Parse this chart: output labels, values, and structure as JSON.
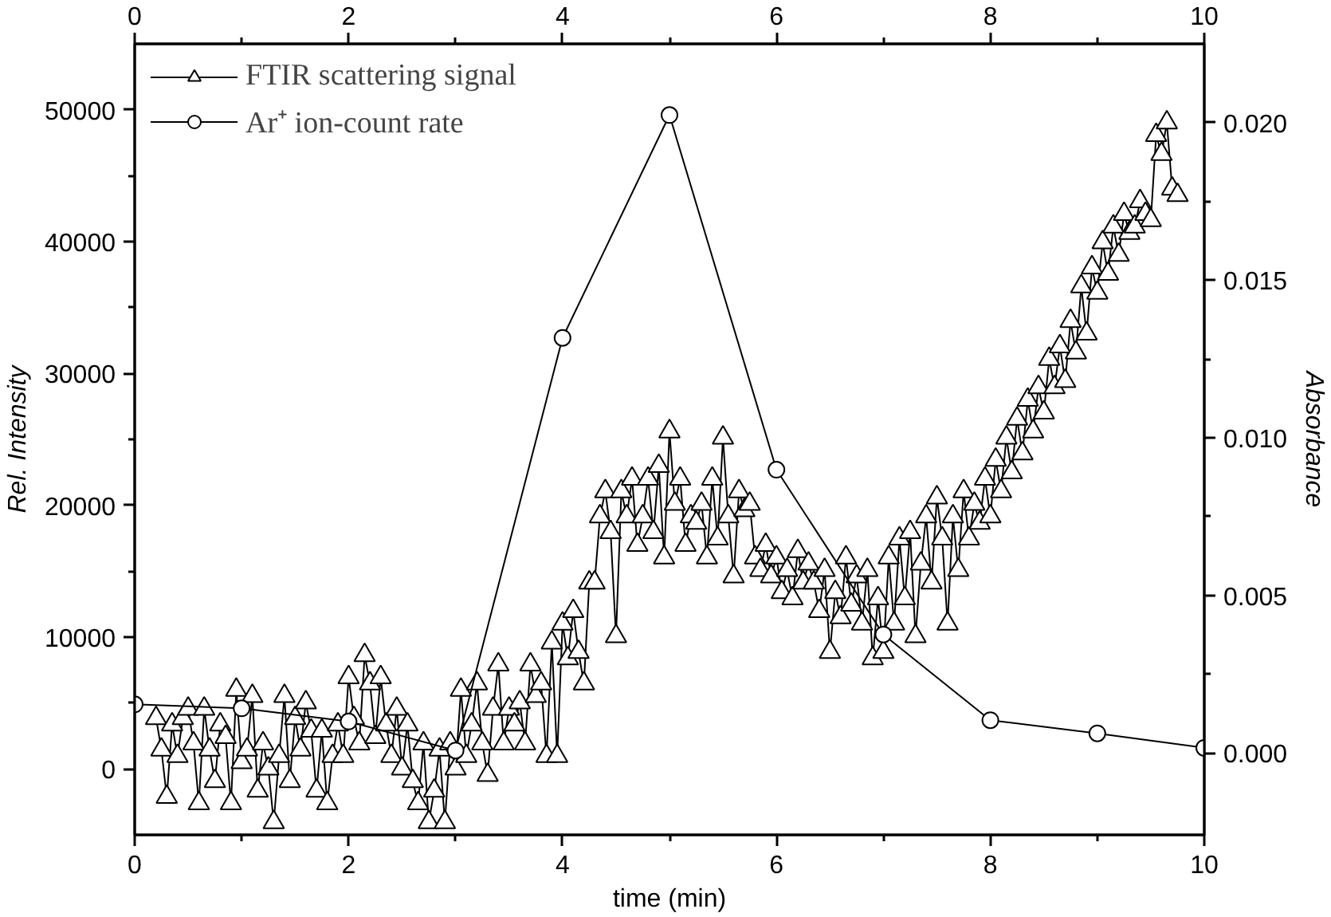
{
  "chart_data": {
    "type": "line",
    "xlabel": "time (min)",
    "ylabel": "Rel. Intensity",
    "y2label": "Absorbance",
    "xlim": [
      0,
      10
    ],
    "xticks": [
      0,
      {
        "value": 1,
        "label": null
      },
      2,
      {
        "value": 3,
        "label": null
      },
      4,
      {
        "value": 5,
        "label": null
      },
      6,
      {
        "value": 7,
        "label": null
      },
      8,
      {
        "value": 9,
        "label": null
      },
      10
    ],
    "x2lim": [
      0,
      10
    ],
    "x2ticks": [
      0,
      {
        "value": 1,
        "label": null
      },
      2,
      {
        "value": 3,
        "label": null
      },
      4,
      {
        "value": 5,
        "label": null
      },
      6,
      {
        "value": 7,
        "label": null
      },
      8,
      {
        "value": 9,
        "label": null
      },
      10
    ],
    "ylim": [
      -5000,
      55000
    ],
    "yticks": [
      0,
      {
        "value": 5000,
        "label": null
      },
      10000,
      {
        "value": 15000,
        "label": null
      },
      20000,
      {
        "value": 25000,
        "label": null
      },
      30000,
      {
        "value": 35000,
        "label": null
      },
      40000,
      {
        "value": 45000,
        "label": null
      },
      50000
    ],
    "y2lim": [
      -0.0026,
      0.0225
    ],
    "y2ticks": [
      {
        "value": 0,
        "label": "0.000"
      },
      {
        "value": 0.0025,
        "label": null
      },
      {
        "value": 0.005,
        "label": "0.005"
      },
      {
        "value": 0.0075,
        "label": null
      },
      {
        "value": 0.01,
        "label": "0.010"
      },
      {
        "value": 0.0125,
        "label": null
      },
      {
        "value": 0.015,
        "label": "0.015"
      },
      {
        "value": 0.0175,
        "label": null
      },
      {
        "value": 0.02,
        "label": "0.020"
      }
    ],
    "grid": false,
    "legend": "top left",
    "line_style": "solid",
    "series": [
      {
        "name": "FTIR scattering signal",
        "color": "#000000",
        "marker": "triangle",
        "axis": "y2",
        "x": [
          0.2,
          0.25,
          0.3,
          0.35,
          0.4,
          0.45,
          0.5,
          0.55,
          0.6,
          0.65,
          0.7,
          0.75,
          0.8,
          0.85,
          0.9,
          0.95,
          1.0,
          1.05,
          1.1,
          1.15,
          1.2,
          1.25,
          1.3,
          1.35,
          1.4,
          1.45,
          1.5,
          1.55,
          1.6,
          1.65,
          1.7,
          1.75,
          1.8,
          1.85,
          1.9,
          1.95,
          2.0,
          2.05,
          2.1,
          2.15,
          2.2,
          2.25,
          2.3,
          2.35,
          2.4,
          2.45,
          2.5,
          2.55,
          2.6,
          2.65,
          2.7,
          2.75,
          2.8,
          2.85,
          2.9,
          2.95,
          3.0,
          3.05,
          3.1,
          3.15,
          3.2,
          3.25,
          3.3,
          3.35,
          3.4,
          3.45,
          3.5,
          3.55,
          3.6,
          3.65,
          3.7,
          3.75,
          3.8,
          3.85,
          3.9,
          3.95,
          4.0,
          4.05,
          4.1,
          4.15,
          4.2,
          4.25,
          4.3,
          4.35,
          4.4,
          4.45,
          4.5,
          4.55,
          4.6,
          4.65,
          4.7,
          4.75,
          4.8,
          4.85,
          4.9,
          4.95,
          5.0,
          5.05,
          5.1,
          5.15,
          5.2,
          5.25,
          5.3,
          5.35,
          5.4,
          5.45,
          5.5,
          5.55,
          5.6,
          5.65,
          5.7,
          5.75,
          5.8,
          5.85,
          5.9,
          5.95,
          6.0,
          6.05,
          6.1,
          6.15,
          6.2,
          6.25,
          6.3,
          6.35,
          6.4,
          6.45,
          6.5,
          6.55,
          6.6,
          6.65,
          6.7,
          6.75,
          6.8,
          6.85,
          6.9,
          6.95,
          7.0,
          7.05,
          7.1,
          7.15,
          7.2,
          7.25,
          7.3,
          7.35,
          7.4,
          7.45,
          7.5,
          7.55,
          7.6,
          7.65,
          7.7,
          7.75,
          7.8,
          7.85,
          7.9,
          7.95,
          8.0,
          8.05,
          8.1,
          8.15,
          8.2,
          8.25,
          8.3,
          8.35,
          8.4,
          8.45,
          8.5,
          8.55,
          8.6,
          8.65,
          8.7,
          8.75,
          8.8,
          8.85,
          8.9,
          8.95,
          9.0,
          9.05,
          9.1,
          9.15,
          9.2,
          9.25,
          9.3,
          9.35,
          9.4,
          9.45,
          9.5,
          9.55,
          9.6,
          9.65,
          9.7,
          9.75
        ],
        "values": [
          0.0011,
          0.0001,
          -0.0014,
          0.0009,
          -0.0001,
          0.0011,
          0.0014,
          0.0003,
          -0.0016,
          0.0014,
          0.0001,
          -0.0009,
          0.0009,
          0.0005,
          -0.0016,
          0.002,
          -0.0003,
          0.0001,
          0.0018,
          -0.0012,
          0.0003,
          -0.0005,
          -0.0022,
          -0.0001,
          0.0018,
          -0.0009,
          0.0011,
          0.0001,
          0.0016,
          0.0007,
          -0.0012,
          0.0007,
          -0.0016,
          -0.0001,
          0.0009,
          -0.0001,
          0.0024,
          0.0011,
          0.0003,
          0.0031,
          0.0022,
          0.0005,
          0.0024,
          0.0009,
          -0.0001,
          0.0014,
          -0.0005,
          0.0009,
          -0.0009,
          -0.0016,
          0.0003,
          -0.0022,
          -0.0012,
          0.0001,
          -0.0022,
          0.0003,
          -0.0005,
          0.002,
          -0.0001,
          0.0009,
          0.0022,
          0.0003,
          -0.0007,
          0.0014,
          0.0028,
          0.0003,
          0.0014,
          0.0009,
          0.0016,
          0.0003,
          0.0028,
          0.0018,
          0.0022,
          -0.0001,
          0.0035,
          -0.0001,
          0.0041,
          0.003,
          0.0045,
          0.0032,
          0.0022,
          0.0054,
          0.0054,
          0.0075,
          0.0083,
          0.007,
          0.0037,
          0.0083,
          0.0075,
          0.0087,
          0.0066,
          0.0075,
          0.0087,
          0.007,
          0.0091,
          0.0062,
          0.0102,
          0.0079,
          0.0087,
          0.0066,
          0.0075,
          0.0073,
          0.0079,
          0.0062,
          0.0087,
          0.0068,
          0.01,
          0.0075,
          0.0056,
          0.0083,
          0.0077,
          0.0079,
          0.0062,
          0.0058,
          0.0066,
          0.0056,
          0.0062,
          0.0051,
          0.0058,
          0.0049,
          0.0064,
          0.0054,
          0.006,
          0.0054,
          0.0045,
          0.0058,
          0.0032,
          0.0051,
          0.0043,
          0.0062,
          0.0047,
          0.0056,
          0.0041,
          0.0058,
          0.003,
          0.0049,
          0.0032,
          0.0062,
          0.0041,
          0.0068,
          0.0049,
          0.007,
          0.0037,
          0.006,
          0.0075,
          0.0054,
          0.0081,
          0.0068,
          0.0041,
          0.0075,
          0.0058,
          0.0083,
          0.0068,
          0.0079,
          0.0073,
          0.0087,
          0.0075,
          0.0093,
          0.0083,
          0.01,
          0.0089,
          0.0106,
          0.0095,
          0.0112,
          0.0102,
          0.0116,
          0.0108,
          0.0125,
          0.0116,
          0.0129,
          0.0118,
          0.0137,
          0.0127,
          0.0148,
          0.0133,
          0.0154,
          0.0146,
          0.0162,
          0.0152,
          0.0167,
          0.0158,
          0.0171,
          0.0165,
          0.0167,
          0.0175,
          0.0171,
          0.0169,
          0.0196,
          0.019,
          0.02,
          0.0179,
          0.0177
        ]
      },
      {
        "name": "Ar⁺ ion-count rate",
        "color": "#000000",
        "marker": "circle",
        "x": [
          0,
          1,
          2,
          3,
          4,
          5,
          6,
          7,
          8,
          9,
          10
        ],
        "values": [
          4900,
          4600,
          3600,
          1400,
          32700,
          49600,
          22700,
          10200,
          3700,
          2700,
          1600
        ]
      }
    ]
  }
}
